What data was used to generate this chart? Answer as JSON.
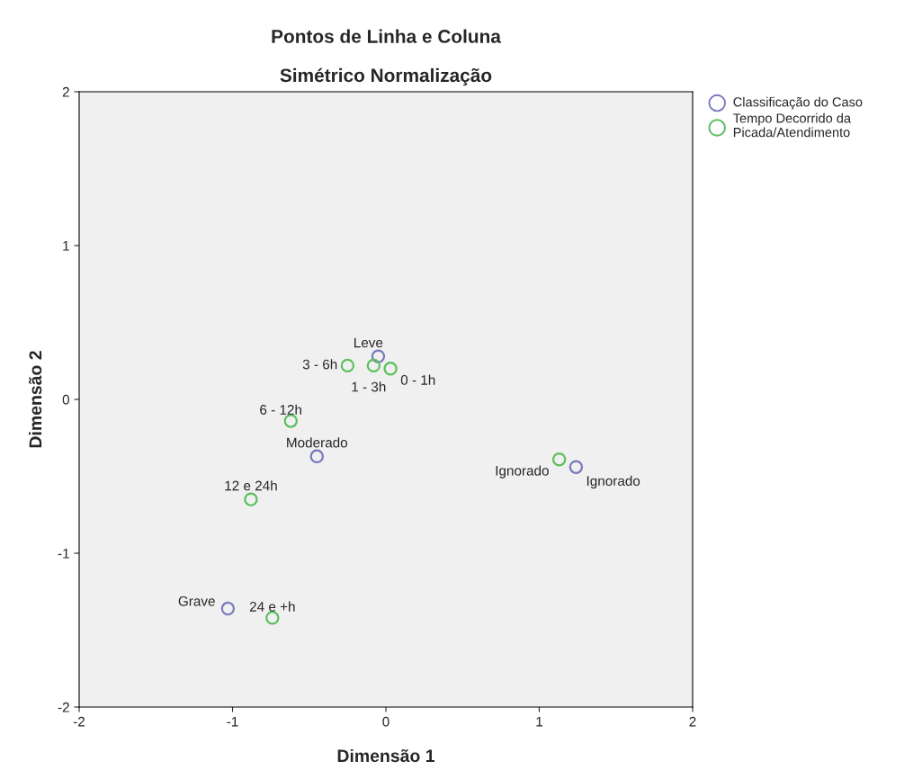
{
  "chart_data": {
    "type": "scatter",
    "title": "Pontos de Linha e Coluna",
    "subtitle": "Simétrico Normalização",
    "xlabel": "Dimensão 1",
    "ylabel": "Dimensão 2",
    "xlim": [
      -2,
      2
    ],
    "ylim": [
      -2,
      2
    ],
    "xticks": [
      -2,
      -1,
      0,
      1,
      2
    ],
    "yticks": [
      -2,
      -1,
      0,
      1,
      2
    ],
    "grid": false,
    "legend": "top right",
    "marker": "circle",
    "series": [
      {
        "name": "Classificação do Caso",
        "color": "#7878c0",
        "x": [
          -0.05,
          -0.45,
          -1.03,
          1.24
        ],
        "values": [
          0.28,
          -0.37,
          -1.36,
          -0.44
        ]
      },
      {
        "name": "Tempo Decorrido da\nPicada/Atendimento",
        "color": "#5cbf5c",
        "x": [
          0.03,
          -0.08,
          -0.25,
          -0.62,
          -0.88,
          -0.74,
          1.13
        ],
        "values": [
          0.2,
          0.22,
          0.22,
          -0.14,
          -0.65,
          -1.42,
          -0.39
        ]
      }
    ],
    "annotations": [
      {
        "text": "Leve",
        "x": -0.05,
        "y": 0.28
      },
      {
        "text": "Moderado",
        "x": -0.45,
        "y": -0.37
      },
      {
        "text": "Grave",
        "x": -1.03,
        "y": -1.36
      },
      {
        "text": "Ignorado",
        "x": 1.24,
        "y": -0.44
      },
      {
        "text": "0 - 1h",
        "x": 0.03,
        "y": 0.2
      },
      {
        "text": "1 - 3h",
        "x": -0.08,
        "y": 0.22
      },
      {
        "text": "3 - 6h",
        "x": -0.25,
        "y": 0.22
      },
      {
        "text": "6 - 12h",
        "x": -0.62,
        "y": -0.14
      },
      {
        "text": "12 e 24h",
        "x": -0.88,
        "y": -0.65
      },
      {
        "text": "24 e +h",
        "x": -0.74,
        "y": -1.42
      },
      {
        "text": "Ignorado",
        "x": 1.13,
        "y": -0.39
      }
    ]
  }
}
